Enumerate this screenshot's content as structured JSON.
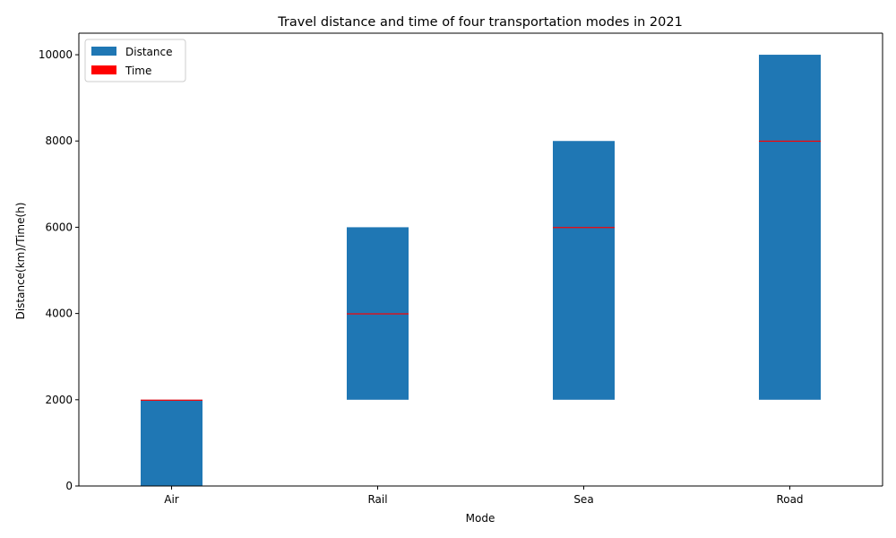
{
  "chart_data": {
    "type": "bar",
    "title": "Travel distance and time of four transportation modes in 2021",
    "xlabel": "Mode",
    "ylabel": "Distance(km)/Time(h)",
    "categories": [
      "Air",
      "Rail",
      "Sea",
      "Road"
    ],
    "ylim": [
      0,
      10500
    ],
    "yticks": [
      0,
      2000,
      4000,
      6000,
      8000,
      10000
    ],
    "series": [
      {
        "name": "Distance",
        "values": [
          2000,
          4000,
          6000,
          8000
        ],
        "base": [
          0,
          2000,
          2000,
          2000
        ],
        "color": "#1f77b4"
      },
      {
        "name": "Time",
        "values": [
          2,
          4,
          6,
          8
        ],
        "base": [
          2000,
          4000,
          6000,
          8000
        ],
        "color": "#ff0000"
      }
    ],
    "legend_position": "top-left",
    "grid": false
  }
}
